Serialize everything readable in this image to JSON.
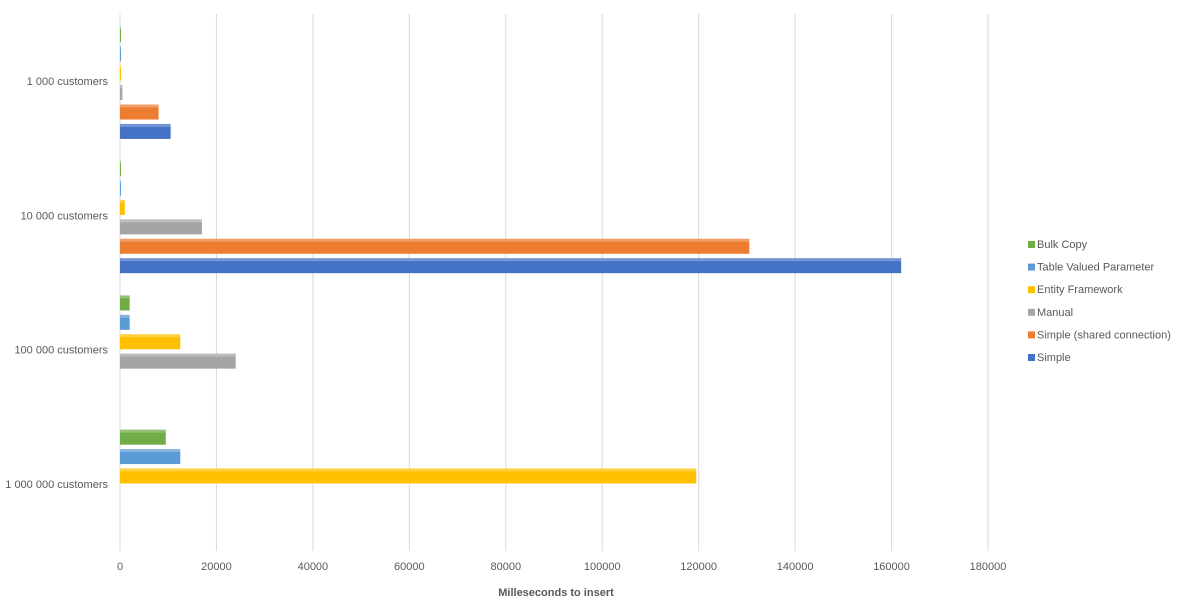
{
  "chart_data": {
    "type": "bar",
    "orientation": "horizontal",
    "title": "",
    "xlabel": "Milleseconds to insert",
    "ylabel": "",
    "xlim": [
      0,
      180000
    ],
    "x_ticks": [
      0,
      20000,
      40000,
      60000,
      80000,
      100000,
      120000,
      140000,
      160000,
      180000
    ],
    "grid": true,
    "legend_position": "right",
    "categories": [
      "1 000 customers",
      "10 000 customers",
      "100 000 customers",
      "1 000 000 customers"
    ],
    "series": [
      {
        "name": "Simple",
        "color": "#4472c4",
        "values": [
          10500,
          162000,
          null,
          null
        ]
      },
      {
        "name": "Simple (shared connection)",
        "color": "#ed7d31",
        "values": [
          8000,
          130500,
          null,
          null
        ]
      },
      {
        "name": "Manual",
        "color": "#a5a5a5",
        "values": [
          500,
          17000,
          24000,
          null
        ]
      },
      {
        "name": "Entity Framework",
        "color": "#ffc000",
        "values": [
          100,
          1000,
          12500,
          119500
        ]
      },
      {
        "name": "Table Valued Parameter",
        "color": "#5b9bd5",
        "values": [
          50,
          100,
          2000,
          12500
        ]
      },
      {
        "name": "Bulk Copy",
        "color": "#70ad47",
        "values": [
          50,
          100,
          2000,
          9500
        ]
      }
    ]
  }
}
